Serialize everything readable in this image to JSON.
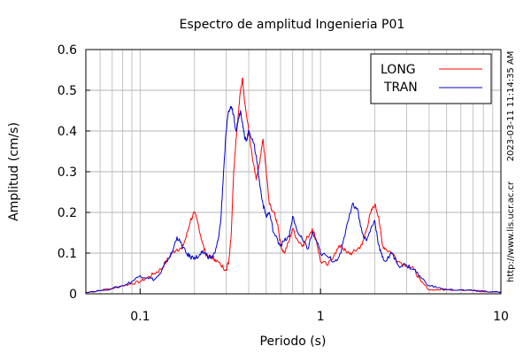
{
  "chart_data": {
    "type": "line",
    "title": "Espectro de amplitud Ingenieria P01",
    "xlabel": "Periodo (s)",
    "ylabel": "Amplitud (cm/s)",
    "x_scale": "log",
    "xlim": [
      0.05,
      10
    ],
    "ylim": [
      0,
      0.6
    ],
    "x_ticks": [
      {
        "value": 0.1,
        "label": "0.1"
      },
      {
        "value": 1,
        "label": "1"
      },
      {
        "value": 10,
        "label": "10"
      }
    ],
    "y_ticks": [
      {
        "value": 0,
        "label": "0"
      },
      {
        "value": 0.1,
        "label": "0.1"
      },
      {
        "value": 0.2,
        "label": "0.2"
      },
      {
        "value": 0.3,
        "label": "0.3"
      },
      {
        "value": 0.4,
        "label": "0.4"
      },
      {
        "value": 0.5,
        "label": "0.5"
      },
      {
        "value": 0.6,
        "label": "0.6"
      }
    ],
    "grid": true,
    "legend_position": "top-right",
    "side_texts": [
      "2023-03-11 11:14:35 AM",
      "http://www.lis.ucr.ac.cr"
    ],
    "series": [
      {
        "name": "LONG",
        "color": "#ff0000",
        "x": [
          0.05,
          0.06,
          0.07,
          0.08,
          0.09,
          0.1,
          0.11,
          0.12,
          0.13,
          0.14,
          0.15,
          0.16,
          0.17,
          0.18,
          0.19,
          0.2,
          0.21,
          0.22,
          0.23,
          0.24,
          0.25,
          0.26,
          0.28,
          0.3,
          0.31,
          0.32,
          0.33,
          0.34,
          0.35,
          0.36,
          0.37,
          0.38,
          0.4,
          0.42,
          0.44,
          0.46,
          0.48,
          0.5,
          0.52,
          0.55,
          0.58,
          0.6,
          0.63,
          0.67,
          0.7,
          0.75,
          0.8,
          0.85,
          0.9,
          0.95,
          1.0,
          1.1,
          1.2,
          1.3,
          1.4,
          1.5,
          1.6,
          1.7,
          1.8,
          1.9,
          2.0,
          2.1,
          2.2,
          2.3,
          2.5,
          2.7,
          3.0,
          3.3,
          3.6,
          4.0,
          4.5,
          5.0,
          6.0,
          7.0,
          8.0,
          9.0,
          10.0
        ],
        "values": [
          0.003,
          0.008,
          0.013,
          0.02,
          0.025,
          0.03,
          0.04,
          0.05,
          0.06,
          0.08,
          0.1,
          0.11,
          0.11,
          0.14,
          0.18,
          0.2,
          0.17,
          0.13,
          0.1,
          0.09,
          0.09,
          0.085,
          0.07,
          0.06,
          0.08,
          0.15,
          0.3,
          0.38,
          0.44,
          0.5,
          0.53,
          0.47,
          0.4,
          0.33,
          0.28,
          0.32,
          0.38,
          0.3,
          0.22,
          0.2,
          0.17,
          0.12,
          0.1,
          0.13,
          0.16,
          0.13,
          0.12,
          0.14,
          0.16,
          0.13,
          0.08,
          0.07,
          0.1,
          0.12,
          0.1,
          0.1,
          0.11,
          0.12,
          0.16,
          0.2,
          0.22,
          0.19,
          0.12,
          0.11,
          0.1,
          0.08,
          0.07,
          0.06,
          0.03,
          0.01,
          0.01,
          0.01,
          0.01,
          0.008,
          0.006,
          0.005,
          0.004
        ]
      },
      {
        "name": "TRAN",
        "color": "#0000cc",
        "x": [
          0.05,
          0.06,
          0.07,
          0.08,
          0.09,
          0.1,
          0.11,
          0.12,
          0.13,
          0.14,
          0.15,
          0.16,
          0.17,
          0.18,
          0.19,
          0.2,
          0.21,
          0.22,
          0.23,
          0.24,
          0.25,
          0.26,
          0.27,
          0.28,
          0.29,
          0.3,
          0.31,
          0.32,
          0.33,
          0.34,
          0.35,
          0.36,
          0.37,
          0.38,
          0.39,
          0.4,
          0.42,
          0.44,
          0.46,
          0.48,
          0.5,
          0.52,
          0.55,
          0.58,
          0.6,
          0.63,
          0.67,
          0.7,
          0.75,
          0.8,
          0.85,
          0.9,
          0.95,
          1.0,
          1.1,
          1.2,
          1.3,
          1.4,
          1.5,
          1.6,
          1.7,
          1.8,
          1.9,
          2.0,
          2.1,
          2.2,
          2.3,
          2.5,
          2.7,
          3.0,
          3.3,
          3.6,
          4.0,
          4.5,
          5.0,
          6.0,
          7.0,
          8.0,
          9.0,
          10.0
        ],
        "values": [
          0.004,
          0.008,
          0.013,
          0.02,
          0.03,
          0.045,
          0.04,
          0.035,
          0.05,
          0.08,
          0.1,
          0.14,
          0.12,
          0.1,
          0.09,
          0.09,
          0.09,
          0.1,
          0.1,
          0.09,
          0.09,
          0.1,
          0.13,
          0.18,
          0.3,
          0.4,
          0.45,
          0.46,
          0.44,
          0.4,
          0.43,
          0.45,
          0.42,
          0.38,
          0.38,
          0.4,
          0.38,
          0.34,
          0.27,
          0.22,
          0.19,
          0.2,
          0.15,
          0.13,
          0.12,
          0.13,
          0.14,
          0.19,
          0.15,
          0.13,
          0.11,
          0.15,
          0.13,
          0.1,
          0.09,
          0.08,
          0.1,
          0.17,
          0.22,
          0.21,
          0.15,
          0.13,
          0.16,
          0.18,
          0.12,
          0.09,
          0.08,
          0.1,
          0.07,
          0.07,
          0.06,
          0.04,
          0.02,
          0.015,
          0.01,
          0.01,
          0.008,
          0.006,
          0.005,
          0.004
        ]
      }
    ]
  }
}
